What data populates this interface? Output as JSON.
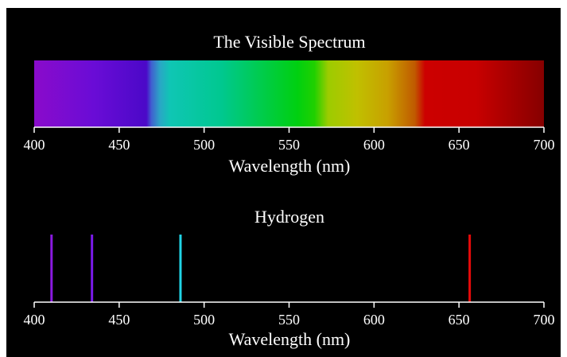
{
  "chart_data": [
    {
      "type": "spectrum",
      "title": "The Visible Spectrum",
      "xlabel": "Wavelength (nm)",
      "xlim": [
        400,
        700
      ],
      "ticks": [
        400,
        450,
        500,
        550,
        600,
        650,
        700
      ],
      "tick_labels": [
        "400",
        "450",
        "500",
        "550",
        "600",
        "650",
        "700"
      ],
      "gradient_stops": [
        {
          "wl": 400,
          "color": "#8a0bcb"
        },
        {
          "wl": 435,
          "color": "#6a0cd6"
        },
        {
          "wl": 466,
          "color": "#4b08c8"
        },
        {
          "wl": 469,
          "color": "#4060d0"
        },
        {
          "wl": 474,
          "color": "#2aa6c6"
        },
        {
          "wl": 480,
          "color": "#0fc6b4"
        },
        {
          "wl": 510,
          "color": "#00c890"
        },
        {
          "wl": 535,
          "color": "#00cc48"
        },
        {
          "wl": 555,
          "color": "#00d010"
        },
        {
          "wl": 565,
          "color": "#20d000"
        },
        {
          "wl": 573,
          "color": "#9ccc00"
        },
        {
          "wl": 590,
          "color": "#c0c000"
        },
        {
          "wl": 608,
          "color": "#c8a000"
        },
        {
          "wl": 624,
          "color": "#c05a00"
        },
        {
          "wl": 630,
          "color": "#cc0000"
        },
        {
          "wl": 660,
          "color": "#c80000"
        },
        {
          "wl": 700,
          "color": "#860000"
        }
      ]
    },
    {
      "type": "emission-lines",
      "title": "Hydrogen",
      "xlabel": "Wavelength (nm)",
      "xlim": [
        400,
        700
      ],
      "ticks": [
        400,
        450,
        500,
        550,
        600,
        650,
        700
      ],
      "tick_labels": [
        "400",
        "450",
        "500",
        "550",
        "600",
        "650",
        "700"
      ],
      "lines": [
        {
          "wavelength": 410.2,
          "color": "#8a1ae0"
        },
        {
          "wavelength": 434.0,
          "color": "#7a1ae8"
        },
        {
          "wavelength": 486.1,
          "color": "#20d4e6"
        },
        {
          "wavelength": 656.3,
          "color": "#e80a0a"
        }
      ]
    }
  ],
  "colors": {
    "background": "#000000",
    "axis": "#ffffff",
    "text": "#ffffff"
  }
}
